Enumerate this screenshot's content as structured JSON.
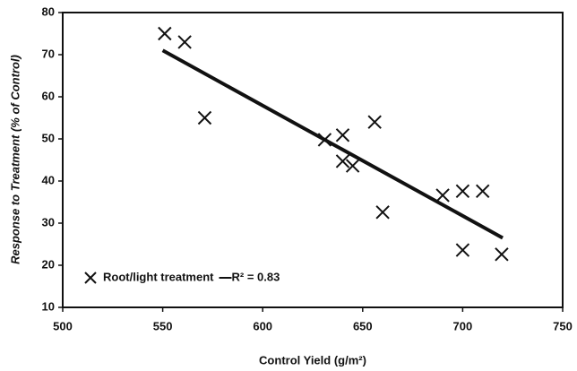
{
  "chart_data": {
    "type": "scatter",
    "x_label": "Control Yield (g/m²)",
    "y_label": "Response to Treatment (% of Control)",
    "xlim": [
      500,
      750
    ],
    "xticks": [
      500,
      550,
      600,
      650,
      700,
      750
    ],
    "ylim": [
      10,
      80
    ],
    "yticks": [
      10,
      20,
      30,
      40,
      50,
      60,
      70,
      80
    ],
    "grid": false,
    "legend_position": "lower left",
    "series": [
      {
        "name": "Root/light treatment",
        "color": "#111111",
        "marker": "x",
        "x": [
          551,
          561,
          571,
          631,
          640,
          640,
          645,
          656,
          660,
          690,
          700,
          710,
          700,
          719.5
        ],
        "values": [
          75,
          73,
          55,
          49.8,
          50.9,
          44.7,
          43.6,
          54,
          32.6,
          36.6,
          37.6,
          37.6,
          23.6,
          22.6
        ]
      },
      {
        "name": "R² = 0.83",
        "color": "#111111",
        "type": "line",
        "x": [
          550,
          720
        ],
        "values": [
          71,
          26.5
        ]
      }
    ]
  }
}
